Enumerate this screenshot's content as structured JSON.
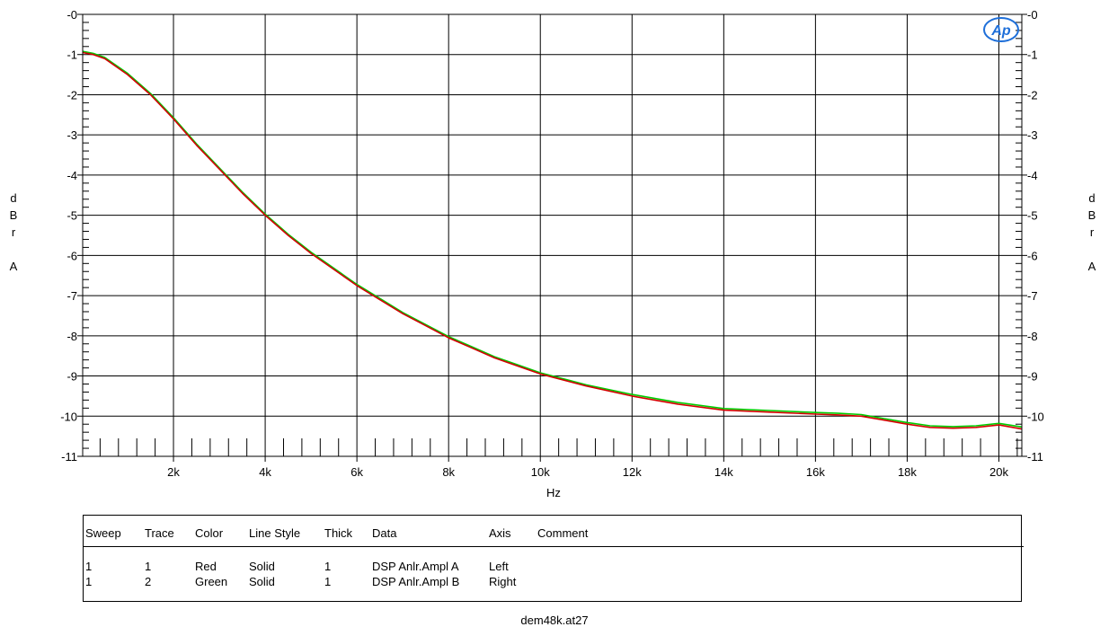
{
  "chart_data": {
    "type": "line",
    "title": "",
    "xlabel": "Hz",
    "ylabel_left": "dBr A",
    "ylabel_right": "dBr A",
    "xlim": [
      20,
      20500
    ],
    "ylim": [
      -11,
      0
    ],
    "x_ticks": [
      2000,
      4000,
      6000,
      8000,
      10000,
      12000,
      14000,
      16000,
      18000,
      20000
    ],
    "x_tick_labels": [
      "2k",
      "4k",
      "6k",
      "8k",
      "10k",
      "12k",
      "14k",
      "16k",
      "18k",
      "20k"
    ],
    "y_ticks": [
      0,
      -1,
      -2,
      -3,
      -4,
      -5,
      -6,
      -7,
      -8,
      -9,
      -10,
      -11
    ],
    "y_tick_labels": [
      "-0",
      "-1",
      "-2",
      "-3",
      "-4",
      "-5",
      "-6",
      "-7",
      "-8",
      "-9",
      "-10",
      "-11"
    ],
    "grid": true,
    "series": [
      {
        "name": "DSP Anlr.Ampl A",
        "color": "#d40000",
        "x": [
          20,
          250,
          500,
          750,
          1000,
          1500,
          2000,
          2500,
          3000,
          3500,
          4000,
          4500,
          5000,
          5500,
          6000,
          6500,
          7000,
          7500,
          8000,
          8500,
          9000,
          9500,
          10000,
          11000,
          12000,
          13000,
          14000,
          15000,
          16000,
          16500,
          17000,
          17500,
          18000,
          18500,
          19000,
          19500,
          20000,
          20500
        ],
        "y": [
          -0.95,
          -1.0,
          -1.1,
          -1.3,
          -1.5,
          -2.0,
          -2.6,
          -3.25,
          -3.85,
          -4.45,
          -5.0,
          -5.5,
          -5.95,
          -6.35,
          -6.75,
          -7.1,
          -7.45,
          -7.75,
          -8.05,
          -8.3,
          -8.55,
          -8.75,
          -8.95,
          -9.25,
          -9.5,
          -9.7,
          -9.85,
          -9.9,
          -9.95,
          -9.97,
          -10.0,
          -10.1,
          -10.2,
          -10.28,
          -10.3,
          -10.28,
          -10.22,
          -10.32
        ]
      },
      {
        "name": "DSP Anlr.Ampl B",
        "color": "#00cc00",
        "x": [
          20,
          250,
          500,
          750,
          1000,
          1500,
          2000,
          2500,
          3000,
          3500,
          4000,
          4500,
          5000,
          5500,
          6000,
          6500,
          7000,
          7500,
          8000,
          8500,
          9000,
          9500,
          10000,
          11000,
          12000,
          13000,
          14000,
          15000,
          16000,
          16500,
          17000,
          17500,
          18000,
          18500,
          19000,
          19500,
          20000,
          20500
        ],
        "y": [
          -0.92,
          -0.97,
          -1.07,
          -1.27,
          -1.47,
          -1.97,
          -2.57,
          -3.22,
          -3.82,
          -4.42,
          -4.97,
          -5.47,
          -5.92,
          -6.32,
          -6.72,
          -7.07,
          -7.42,
          -7.72,
          -8.02,
          -8.27,
          -8.52,
          -8.72,
          -8.92,
          -9.22,
          -9.46,
          -9.66,
          -9.81,
          -9.86,
          -9.91,
          -9.93,
          -9.96,
          -10.06,
          -10.16,
          -10.24,
          -10.26,
          -10.24,
          -10.18,
          -10.27
        ]
      }
    ]
  },
  "legend": {
    "headers": [
      "Sweep",
      "Trace",
      "Color",
      "Line Style",
      "Thick",
      "Data",
      "Axis",
      "Comment"
    ],
    "rows": [
      [
        "1",
        "1",
        "Red",
        "Solid",
        "1",
        "DSP Anlr.Ampl A",
        "Left",
        ""
      ],
      [
        "1",
        "2",
        "Green",
        "Solid",
        "1",
        "DSP Anlr.Ampl B",
        "Right",
        ""
      ]
    ]
  },
  "logo_text": "Ap",
  "footer": "dem48k.at27"
}
